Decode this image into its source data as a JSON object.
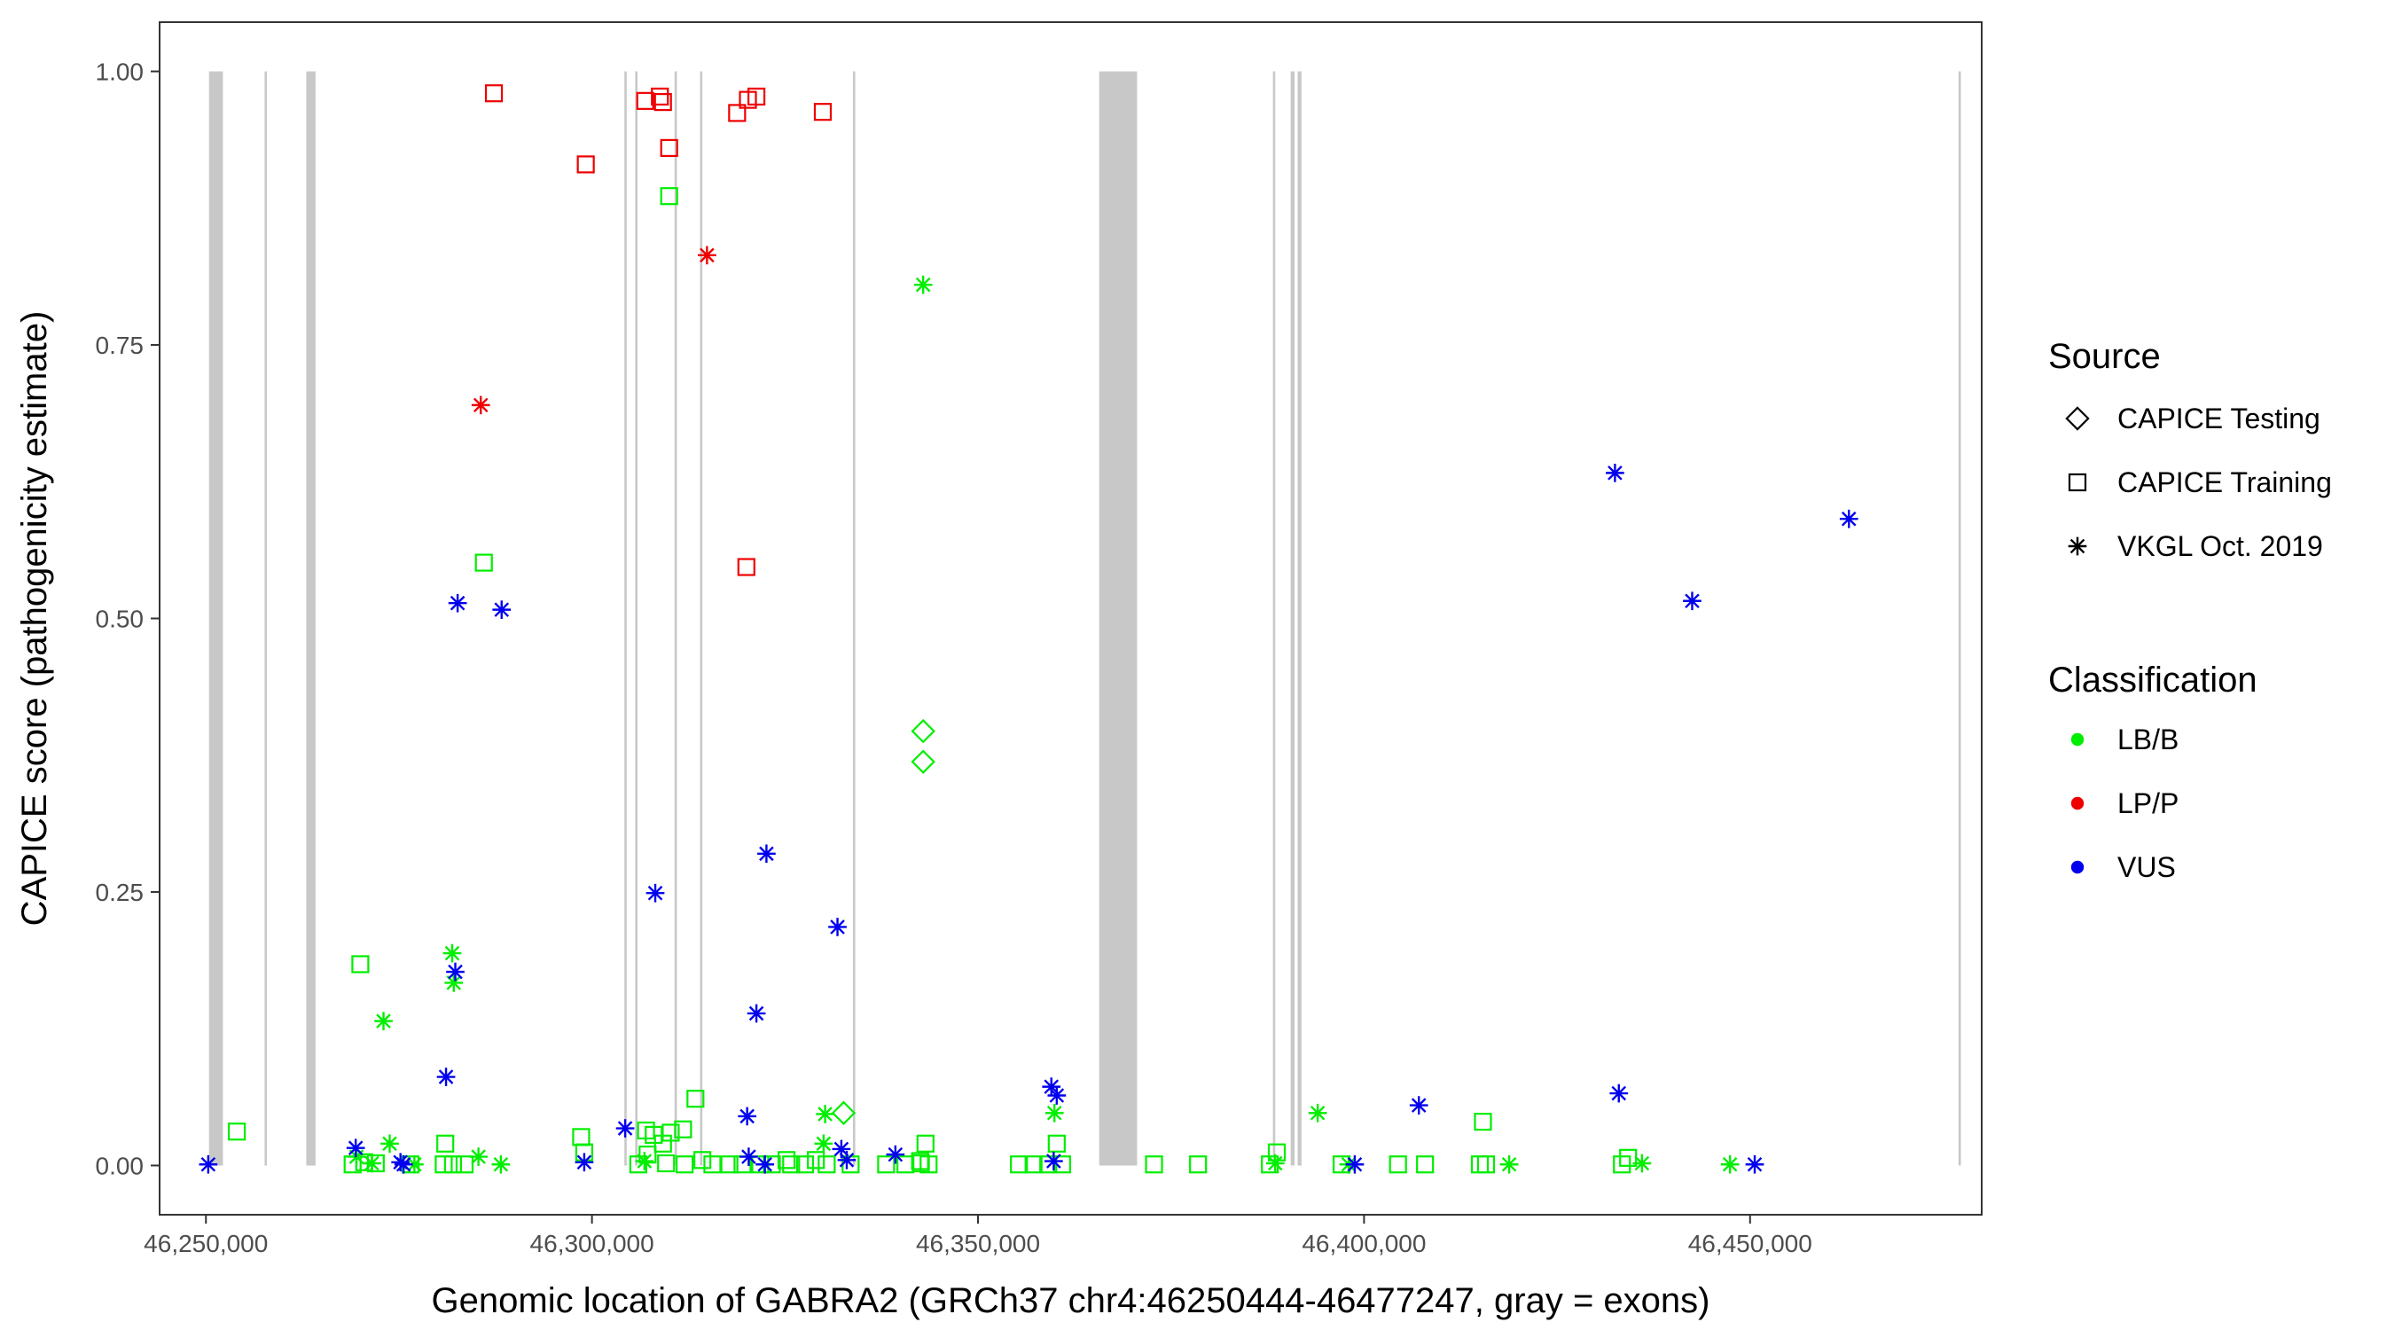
{
  "chart_data": {
    "type": "scatter",
    "title": "",
    "xlabel": "Genomic location of GABRA2 (GRCh37 chr4:46250444-46477247, gray = exons)",
    "ylabel": "CAPICE score (pathogenicity estimate)",
    "xlim": [
      46244000,
      46480000
    ],
    "ylim": [
      -0.045,
      1.045
    ],
    "grid": false,
    "x_ticks": [
      46250000,
      46300000,
      46350000,
      46400000,
      46450000
    ],
    "x_tick_labels": [
      "46,250,000",
      "46,300,000",
      "46,350,000",
      "46,400,000",
      "46,450,000"
    ],
    "y_ticks": [
      0,
      0.25,
      0.5,
      0.75,
      1
    ],
    "y_tick_labels": [
      "0.00",
      "0.25",
      "0.50",
      "0.75",
      "1.00"
    ],
    "exons": [
      [
        46250400,
        46252200
      ],
      [
        46257600,
        46257900
      ],
      [
        46263000,
        46264200
      ],
      [
        46304200,
        46304500
      ],
      [
        46305600,
        46305900
      ],
      [
        46310700,
        46311000
      ],
      [
        46314000,
        46314300
      ],
      [
        46333800,
        46334100
      ],
      [
        46365700,
        46370600
      ],
      [
        46388200,
        46388500
      ],
      [
        46390500,
        46391000
      ],
      [
        46391400,
        46391900
      ],
      [
        46477000,
        46477300
      ]
    ],
    "legend": {
      "source_title": "Source",
      "source_items": [
        {
          "label": "CAPICE Testing",
          "shape": "diamond"
        },
        {
          "label": "CAPICE Training",
          "shape": "square"
        },
        {
          "label": "VKGL Oct. 2019",
          "shape": "asterisk"
        }
      ],
      "class_title": "Classification",
      "class_items": [
        {
          "label": "LB/B",
          "color": "#00ee00"
        },
        {
          "label": "LP/P",
          "color": "#ee0000"
        },
        {
          "label": "VUS",
          "color": "#0000ee"
        }
      ]
    },
    "series": [
      {
        "shape": "square",
        "classification": "LP/P",
        "color": "#ee0000",
        "points": [
          [
            46287300,
            0.98
          ],
          [
            46299200,
            0.915
          ],
          [
            46306900,
            0.973
          ],
          [
            46308800,
            0.977
          ],
          [
            46309200,
            0.972
          ],
          [
            46310000,
            0.93
          ],
          [
            46318800,
            0.962
          ],
          [
            46320200,
            0.974
          ],
          [
            46321300,
            0.977
          ],
          [
            46329900,
            0.963
          ],
          [
            46320000,
            0.547
          ]
        ]
      },
      {
        "shape": "asterisk",
        "classification": "LP/P",
        "color": "#ee0000",
        "points": [
          [
            46285600,
            0.695
          ],
          [
            46314900,
            0.832
          ]
        ]
      },
      {
        "shape": "square",
        "classification": "LB/B",
        "color": "#00ee00",
        "points": [
          [
            46310000,
            0.886
          ],
          [
            46286000,
            0.551
          ],
          [
            46270000,
            0.184
          ],
          [
            46254000,
            0.031
          ],
          [
            46313400,
            0.061
          ],
          [
            46298600,
            0.026
          ],
          [
            46299000,
            0.012
          ],
          [
            46281000,
            0.02
          ],
          [
            46307000,
            0.032
          ],
          [
            46308000,
            0.028
          ],
          [
            46309200,
            0.02
          ],
          [
            46310200,
            0.03
          ],
          [
            46311800,
            0.033
          ],
          [
            46343200,
            0.02
          ],
          [
            46360200,
            0.02
          ],
          [
            46388700,
            0.012
          ],
          [
            46415400,
            0.04
          ],
          [
            46434200,
            0.007
          ],
          [
            46307200,
            0.01
          ],
          [
            46325200,
            0.005
          ],
          [
            46329000,
            0.005
          ],
          [
            46342500,
            0.004
          ],
          [
            46269000,
            0.001
          ],
          [
            46270500,
            0.003
          ],
          [
            46272000,
            0.002
          ],
          [
            46276500,
            0.001
          ],
          [
            46280800,
            0.001
          ],
          [
            46282000,
            0.001
          ],
          [
            46283500,
            0.001
          ],
          [
            46306000,
            0.001
          ],
          [
            46309600,
            0.002
          ],
          [
            46312000,
            0.001
          ],
          [
            46314300,
            0.005
          ],
          [
            46315600,
            0.001
          ],
          [
            46317800,
            0.001
          ],
          [
            46319500,
            0.001
          ],
          [
            46321800,
            0.001
          ],
          [
            46323300,
            0.001
          ],
          [
            46325800,
            0.001
          ],
          [
            46327600,
            0.001
          ],
          [
            46330400,
            0.001
          ],
          [
            46333500,
            0.001
          ],
          [
            46338100,
            0.001
          ],
          [
            46340600,
            0.001
          ],
          [
            46342600,
            0.002
          ],
          [
            46343600,
            0.001
          ],
          [
            46355300,
            0.001
          ],
          [
            46357200,
            0.001
          ],
          [
            46359100,
            0.001
          ],
          [
            46360900,
            0.001
          ],
          [
            46372800,
            0.001
          ],
          [
            46378500,
            0.001
          ],
          [
            46387800,
            0.001
          ],
          [
            46397100,
            0.001
          ],
          [
            46404400,
            0.001
          ],
          [
            46407900,
            0.001
          ],
          [
            46415000,
            0.001
          ],
          [
            46415800,
            0.001
          ],
          [
            46433400,
            0.001
          ]
        ]
      },
      {
        "shape": "diamond",
        "classification": "LB/B",
        "color": "#00ee00",
        "points": [
          [
            46342900,
            0.397
          ],
          [
            46342900,
            0.369
          ],
          [
            46332600,
            0.048
          ]
        ]
      },
      {
        "shape": "asterisk",
        "classification": "LB/B",
        "color": "#00ee00",
        "points": [
          [
            46342900,
            0.805
          ],
          [
            46281900,
            0.194
          ],
          [
            46282100,
            0.167
          ],
          [
            46273000,
            0.132
          ],
          [
            46330200,
            0.047
          ],
          [
            46330000,
            0.02
          ],
          [
            46359900,
            0.048
          ],
          [
            46394000,
            0.048
          ],
          [
            46273800,
            0.02
          ],
          [
            46269500,
            0.008
          ],
          [
            46285300,
            0.008
          ],
          [
            46306800,
            0.004
          ],
          [
            46388500,
            0.002
          ],
          [
            46398000,
            0.001
          ],
          [
            46418800,
            0.001
          ],
          [
            46436000,
            0.002
          ],
          [
            46447400,
            0.001
          ],
          [
            46277000,
            0.001
          ],
          [
            46288200,
            0.001
          ],
          [
            46271500,
            0.002
          ]
        ]
      },
      {
        "shape": "asterisk",
        "classification": "VUS",
        "color": "#0000ee",
        "points": [
          [
            46432500,
            0.633
          ],
          [
            46462800,
            0.591
          ],
          [
            46442500,
            0.516
          ],
          [
            46282600,
            0.514
          ],
          [
            46288300,
            0.508
          ],
          [
            46322600,
            0.285
          ],
          [
            46308200,
            0.249
          ],
          [
            46331800,
            0.218
          ],
          [
            46282300,
            0.177
          ],
          [
            46321300,
            0.139
          ],
          [
            46281100,
            0.081
          ],
          [
            46359500,
            0.072
          ],
          [
            46360200,
            0.064
          ],
          [
            46433000,
            0.066
          ],
          [
            46407100,
            0.055
          ],
          [
            46320100,
            0.045
          ],
          [
            46304300,
            0.034
          ],
          [
            46269400,
            0.016
          ],
          [
            46332300,
            0.015
          ],
          [
            46320300,
            0.008
          ],
          [
            46339300,
            0.01
          ],
          [
            46275200,
            0.003
          ],
          [
            46299000,
            0.003
          ],
          [
            46359800,
            0.004
          ],
          [
            46333000,
            0.005
          ],
          [
            46250300,
            0.001
          ],
          [
            46322400,
            0.001
          ],
          [
            46398800,
            0.001
          ],
          [
            46450600,
            0.001
          ],
          [
            46275600,
            0.001
          ]
        ]
      }
    ]
  }
}
